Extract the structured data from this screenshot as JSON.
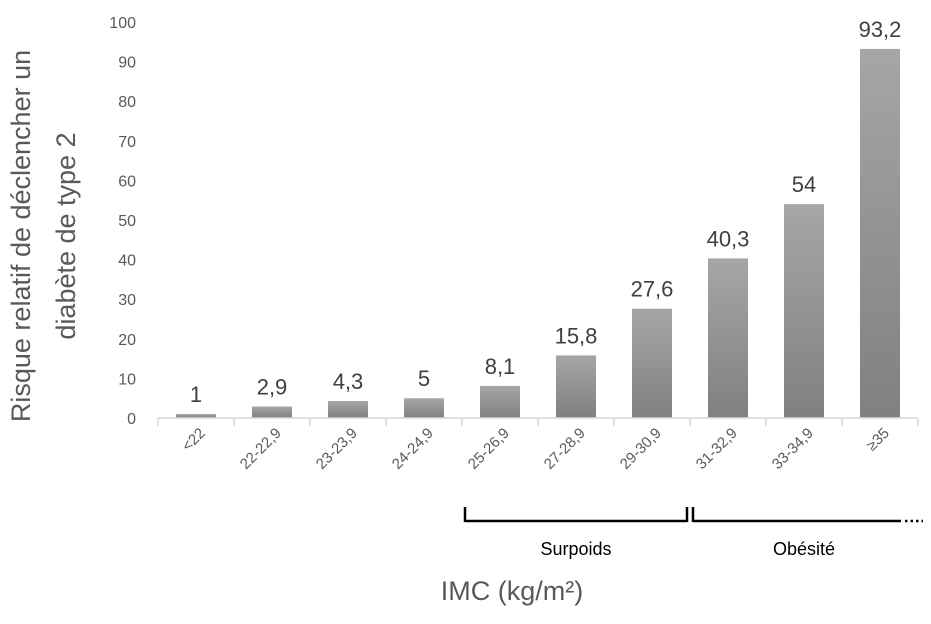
{
  "chart_data": {
    "type": "bar",
    "categories": [
      "<22",
      "22-22,9",
      "23-23,9",
      "24-24,9",
      "25-26,9",
      "27-28,9",
      "29-30,9",
      "31-32,9",
      "33-34,9",
      "≥35"
    ],
    "values": [
      1,
      2.9,
      4.3,
      5,
      8.1,
      15.8,
      27.6,
      40.3,
      54,
      93.2
    ],
    "data_labels": [
      "1",
      "2,9",
      "4,3",
      "5",
      "8,1",
      "15,8",
      "27,6",
      "40,3",
      "54",
      "93,2"
    ],
    "ylim": [
      0,
      100
    ],
    "yticks": [
      "0",
      "10",
      "20",
      "30",
      "40",
      "50",
      "60",
      "70",
      "80",
      "90",
      "100"
    ],
    "ylabel_lines": [
      "Risque relatif de déclencher un",
      "diabète de type 2"
    ],
    "xlabel": "IMC (kg/m²)",
    "grid": false,
    "groups": [
      {
        "label": "Surpoids",
        "from_category": "25-26,9",
        "to_category": "29-30,9"
      },
      {
        "label": "Obésité",
        "from_category": "31-32,9",
        "to_category": "≥35",
        "open_ended": true
      }
    ],
    "colors": {
      "bar": "#8c8c8c",
      "bar_light": "#a6a6a6",
      "axis": "#d9d9d9",
      "text": "#595959"
    }
  }
}
